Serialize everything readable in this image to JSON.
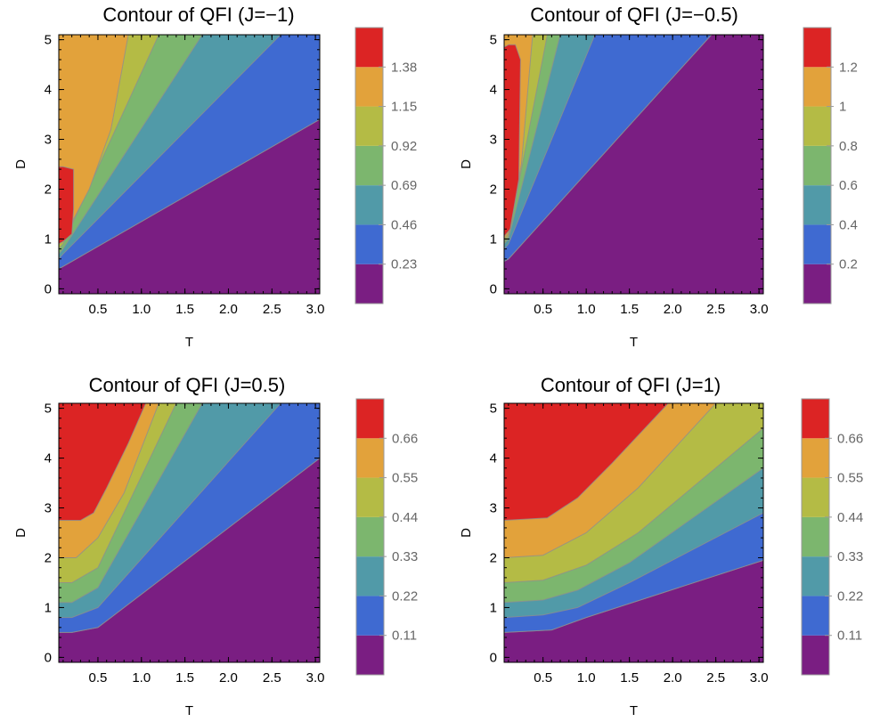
{
  "chart_data": [
    {
      "type": "contour",
      "title": "Contour of QFI (J=−1)",
      "xlabel": "T",
      "ylabel": "D",
      "xlim": [
        0.05,
        3.05
      ],
      "ylim": [
        -0.1,
        5.1
      ],
      "xticks": [
        "0.5",
        "1.0",
        "1.5",
        "2.0",
        "2.5",
        "3.0"
      ],
      "yticks": [
        "0",
        "1",
        "2",
        "3",
        "4",
        "5"
      ],
      "contour_levels": [
        "0.23",
        "0.46",
        "0.69",
        "0.92",
        "1.15",
        "1.38"
      ],
      "colors": [
        "#7a1e82",
        "#3f6ad1",
        "#519aa8",
        "#7cb66e",
        "#b4bb45",
        "#e2a23b",
        "#dc2424"
      ],
      "regions": [
        {
          "color": "#7a1e82",
          "points": [
            [
              0.05,
              -0.1
            ],
            [
              3.05,
              -0.1
            ],
            [
              3.05,
              3.4
            ],
            [
              0.15,
              0.5
            ],
            [
              0.05,
              0.4
            ]
          ]
        },
        {
          "color": "#3f6ad1",
          "points": [
            [
              0.05,
              0.4
            ],
            [
              0.15,
              0.5
            ],
            [
              3.05,
              3.4
            ],
            [
              3.05,
              5.1
            ],
            [
              0.05,
              5.1
            ]
          ]
        },
        {
          "color": "#519aa8",
          "points": [
            [
              0.05,
              0.6
            ],
            [
              0.1,
              0.7
            ],
            [
              2.6,
              5.1
            ],
            [
              0.05,
              5.1
            ]
          ]
        },
        {
          "color": "#7cb66e",
          "points": [
            [
              0.05,
              0.7
            ],
            [
              0.1,
              0.8
            ],
            [
              1.7,
              5.1
            ],
            [
              0.05,
              5.1
            ]
          ]
        },
        {
          "color": "#b4bb45",
          "points": [
            [
              0.05,
              0.8
            ],
            [
              0.1,
              0.9
            ],
            [
              1.2,
              5.1
            ],
            [
              0.05,
              5.1
            ]
          ]
        },
        {
          "color": "#e2a23b",
          "points": [
            [
              0.05,
              0.9
            ],
            [
              0.1,
              1.0
            ],
            [
              0.4,
              2.0
            ],
            [
              0.65,
              3.2
            ],
            [
              0.85,
              5.1
            ],
            [
              0.05,
              5.1
            ]
          ]
        },
        {
          "color": "#dc2424",
          "points": [
            [
              0.05,
              0.9
            ],
            [
              0.1,
              0.95
            ],
            [
              0.2,
              1.1
            ],
            [
              0.22,
              1.6
            ],
            [
              0.22,
              2.4
            ],
            [
              0.1,
              2.45
            ],
            [
              0.05,
              2.45
            ]
          ]
        }
      ]
    },
    {
      "type": "contour",
      "title": "Contour of QFI (J=−0.5)",
      "xlabel": "T",
      "ylabel": "D",
      "xlim": [
        0.05,
        3.05
      ],
      "ylim": [
        -0.1,
        5.1
      ],
      "xticks": [
        "0.5",
        "1.0",
        "1.5",
        "2.0",
        "2.5",
        "3.0"
      ],
      "yticks": [
        "0",
        "1",
        "2",
        "3",
        "4",
        "5"
      ],
      "contour_levels": [
        "0.2",
        "0.4",
        "0.6",
        "0.8",
        "1",
        "1.2"
      ],
      "colors": [
        "#7a1e82",
        "#3f6ad1",
        "#519aa8",
        "#7cb66e",
        "#b4bb45",
        "#e2a23b",
        "#dc2424"
      ],
      "regions": [
        {
          "color": "#7a1e82",
          "points": [
            [
              0.05,
              -0.1
            ],
            [
              3.05,
              -0.1
            ],
            [
              3.05,
              5.1
            ],
            [
              2.45,
              5.1
            ],
            [
              0.1,
              0.6
            ],
            [
              0.05,
              0.55
            ]
          ]
        },
        {
          "color": "#3f6ad1",
          "points": [
            [
              0.05,
              0.55
            ],
            [
              0.1,
              0.6
            ],
            [
              2.45,
              5.1
            ],
            [
              0.05,
              5.1
            ]
          ]
        },
        {
          "color": "#519aa8",
          "points": [
            [
              0.05,
              0.8
            ],
            [
              0.1,
              0.9
            ],
            [
              1.1,
              5.1
            ],
            [
              0.05,
              5.1
            ]
          ]
        },
        {
          "color": "#7cb66e",
          "points": [
            [
              0.05,
              0.9
            ],
            [
              0.1,
              1.0
            ],
            [
              0.7,
              5.1
            ],
            [
              0.05,
              5.1
            ]
          ]
        },
        {
          "color": "#b4bb45",
          "points": [
            [
              0.05,
              0.95
            ],
            [
              0.1,
              1.05
            ],
            [
              0.55,
              5.1
            ],
            [
              0.05,
              5.1
            ]
          ]
        },
        {
          "color": "#e2a23b",
          "points": [
            [
              0.05,
              1.0
            ],
            [
              0.1,
              1.1
            ],
            [
              0.25,
              2.5
            ],
            [
              0.38,
              5.1
            ],
            [
              0.05,
              5.1
            ]
          ]
        },
        {
          "color": "#dc2424",
          "points": [
            [
              0.05,
              1.05
            ],
            [
              0.12,
              1.2
            ],
            [
              0.22,
              2.2
            ],
            [
              0.24,
              4.6
            ],
            [
              0.18,
              4.9
            ],
            [
              0.1,
              4.9
            ],
            [
              0.05,
              4.85
            ]
          ]
        }
      ]
    },
    {
      "type": "contour",
      "title": "Contour of QFI (J=0.5)",
      "xlabel": "T",
      "ylabel": "D",
      "xlim": [
        0.05,
        3.05
      ],
      "ylim": [
        -0.1,
        5.1
      ],
      "xticks": [
        "0.5",
        "1.0",
        "1.5",
        "2.0",
        "2.5",
        "3.0"
      ],
      "yticks": [
        "0",
        "1",
        "2",
        "3",
        "4",
        "5"
      ],
      "contour_levels": [
        "0.11",
        "0.22",
        "0.33",
        "0.44",
        "0.55",
        "0.66"
      ],
      "colors": [
        "#7a1e82",
        "#3f6ad1",
        "#519aa8",
        "#7cb66e",
        "#b4bb45",
        "#e2a23b",
        "#dc2424"
      ],
      "regions": [
        {
          "color": "#7a1e82",
          "points": [
            [
              0.05,
              -0.1
            ],
            [
              3.05,
              -0.1
            ],
            [
              3.05,
              4.0
            ],
            [
              0.5,
              0.6
            ],
            [
              0.2,
              0.5
            ],
            [
              0.05,
              0.5
            ]
          ]
        },
        {
          "color": "#3f6ad1",
          "points": [
            [
              0.05,
              0.5
            ],
            [
              0.2,
              0.5
            ],
            [
              0.5,
              0.6
            ],
            [
              3.05,
              4.0
            ],
            [
              3.05,
              5.1
            ],
            [
              0.05,
              5.1
            ]
          ]
        },
        {
          "color": "#519aa8",
          "points": [
            [
              0.05,
              0.8
            ],
            [
              0.2,
              0.8
            ],
            [
              0.5,
              1.0
            ],
            [
              2.6,
              5.1
            ],
            [
              0.05,
              5.1
            ]
          ]
        },
        {
          "color": "#7cb66e",
          "points": [
            [
              0.05,
              1.1
            ],
            [
              0.2,
              1.1
            ],
            [
              0.5,
              1.4
            ],
            [
              1.7,
              5.1
            ],
            [
              0.05,
              5.1
            ]
          ]
        },
        {
          "color": "#b4bb45",
          "points": [
            [
              0.05,
              1.5
            ],
            [
              0.2,
              1.5
            ],
            [
              0.5,
              1.8
            ],
            [
              1.4,
              5.1
            ],
            [
              0.05,
              5.1
            ]
          ]
        },
        {
          "color": "#e2a23b",
          "points": [
            [
              0.05,
              2.0
            ],
            [
              0.25,
              2.0
            ],
            [
              0.5,
              2.4
            ],
            [
              0.8,
              3.3
            ],
            [
              1.2,
              5.1
            ],
            [
              0.05,
              5.1
            ]
          ]
        },
        {
          "color": "#dc2424",
          "points": [
            [
              0.05,
              2.75
            ],
            [
              0.3,
              2.75
            ],
            [
              0.45,
              2.9
            ],
            [
              0.6,
              3.4
            ],
            [
              0.85,
              4.3
            ],
            [
              1.05,
              5.1
            ],
            [
              0.05,
              5.1
            ]
          ]
        }
      ]
    },
    {
      "type": "contour",
      "title": "Contour of QFI (J=1)",
      "xlabel": "T",
      "ylabel": "D",
      "xlim": [
        0.05,
        3.05
      ],
      "ylim": [
        -0.1,
        5.1
      ],
      "xticks": [
        "0.5",
        "1.0",
        "1.5",
        "2.0",
        "2.5",
        "3.0"
      ],
      "yticks": [
        "0",
        "1",
        "2",
        "3",
        "4",
        "5"
      ],
      "contour_levels": [
        "0.11",
        "0.22",
        "0.33",
        "0.44",
        "0.55",
        "0.66"
      ],
      "colors": [
        "#7a1e82",
        "#3f6ad1",
        "#519aa8",
        "#7cb66e",
        "#b4bb45",
        "#e2a23b",
        "#dc2424"
      ],
      "regions": [
        {
          "color": "#7a1e82",
          "points": [
            [
              0.05,
              -0.1
            ],
            [
              3.05,
              -0.1
            ],
            [
              3.05,
              1.95
            ],
            [
              1.0,
              0.8
            ],
            [
              0.6,
              0.55
            ],
            [
              0.05,
              0.5
            ]
          ]
        },
        {
          "color": "#3f6ad1",
          "points": [
            [
              0.05,
              0.5
            ],
            [
              0.6,
              0.55
            ],
            [
              1.0,
              0.8
            ],
            [
              3.05,
              1.95
            ],
            [
              3.05,
              5.1
            ],
            [
              0.05,
              5.1
            ]
          ]
        },
        {
          "color": "#519aa8",
          "points": [
            [
              0.05,
              0.8
            ],
            [
              0.5,
              0.85
            ],
            [
              0.9,
              1.0
            ],
            [
              1.5,
              1.5
            ],
            [
              3.05,
              2.9
            ],
            [
              3.05,
              5.1
            ],
            [
              0.05,
              5.1
            ]
          ]
        },
        {
          "color": "#7cb66e",
          "points": [
            [
              0.05,
              1.1
            ],
            [
              0.5,
              1.15
            ],
            [
              0.9,
              1.35
            ],
            [
              1.5,
              1.9
            ],
            [
              3.05,
              3.8
            ],
            [
              3.05,
              5.1
            ],
            [
              0.05,
              5.1
            ]
          ]
        },
        {
          "color": "#b4bb45",
          "points": [
            [
              0.05,
              1.5
            ],
            [
              0.5,
              1.55
            ],
            [
              1.0,
              1.85
            ],
            [
              1.6,
              2.5
            ],
            [
              3.05,
              4.6
            ],
            [
              3.05,
              5.1
            ],
            [
              0.05,
              5.1
            ]
          ]
        },
        {
          "color": "#e2a23b",
          "points": [
            [
              0.05,
              2.0
            ],
            [
              0.5,
              2.05
            ],
            [
              1.0,
              2.5
            ],
            [
              1.6,
              3.4
            ],
            [
              2.5,
              5.1
            ],
            [
              0.05,
              5.1
            ]
          ]
        },
        {
          "color": "#dc2424",
          "points": [
            [
              0.05,
              2.75
            ],
            [
              0.55,
              2.8
            ],
            [
              0.9,
              3.2
            ],
            [
              1.3,
              3.9
            ],
            [
              1.95,
              5.1
            ],
            [
              0.05,
              5.1
            ]
          ]
        }
      ]
    }
  ]
}
